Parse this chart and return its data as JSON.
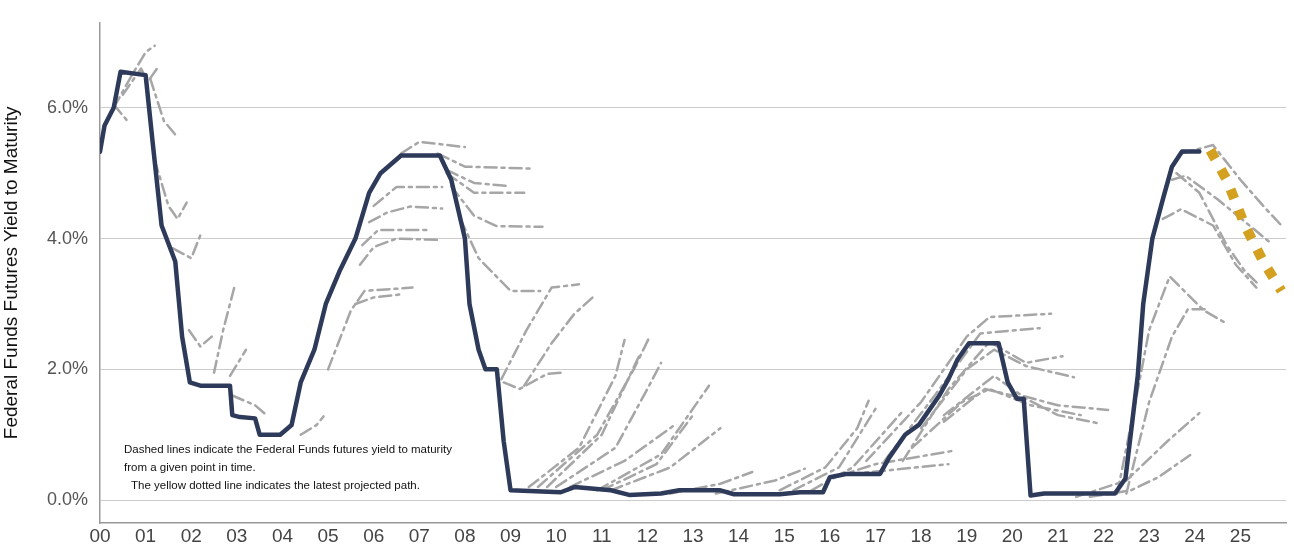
{
  "chart_data": {
    "type": "line",
    "ylabel": "Federal Funds Futures Yield to Maturity",
    "xlim": [
      2000,
      2026
    ],
    "ylim": [
      -0.35,
      7.3
    ],
    "xticks": [
      {
        "value": 2000,
        "label": "00"
      },
      {
        "value": 2001,
        "label": "01"
      },
      {
        "value": 2002,
        "label": "02"
      },
      {
        "value": 2003,
        "label": "03"
      },
      {
        "value": 2004,
        "label": "04"
      },
      {
        "value": 2005,
        "label": "05"
      },
      {
        "value": 2006,
        "label": "06"
      },
      {
        "value": 2007,
        "label": "07"
      },
      {
        "value": 2008,
        "label": "08"
      },
      {
        "value": 2009,
        "label": "09"
      },
      {
        "value": 2010,
        "label": "10"
      },
      {
        "value": 2011,
        "label": "11"
      },
      {
        "value": 2012,
        "label": "12"
      },
      {
        "value": 2013,
        "label": "13"
      },
      {
        "value": 2014,
        "label": "14"
      },
      {
        "value": 2015,
        "label": "15"
      },
      {
        "value": 2016,
        "label": "16"
      },
      {
        "value": 2017,
        "label": "17"
      },
      {
        "value": 2018,
        "label": "18"
      },
      {
        "value": 2019,
        "label": "19"
      },
      {
        "value": 2020,
        "label": "20"
      },
      {
        "value": 2021,
        "label": "21"
      },
      {
        "value": 2022,
        "label": "22"
      },
      {
        "value": 2023,
        "label": "23"
      },
      {
        "value": 2024,
        "label": "24"
      },
      {
        "value": 2025,
        "label": "25"
      }
    ],
    "yticks": [
      {
        "value": 0,
        "label": "0.0%"
      },
      {
        "value": 2,
        "label": "2.0%"
      },
      {
        "value": 4,
        "label": "4.0%"
      },
      {
        "value": 6,
        "label": "6.0%"
      }
    ],
    "grid": "y",
    "marker": "none",
    "annotations": [
      "Dashed lines indicate the Federal Funds futures yield to maturity from a given point in time.",
      "The yellow dotted line indicates the latest projected path."
    ],
    "series": [
      {
        "color": "#2e3a59",
        "line_style": "solid",
        "x": [
          2000.0,
          2000.1,
          2000.3,
          2000.45,
          2001.0,
          2001.15,
          2001.35,
          2001.65,
          2001.8,
          2001.97,
          2002.2,
          2002.85,
          2002.9,
          2003.07,
          2003.4,
          2003.5,
          2003.95,
          2004.2,
          2004.4,
          2004.7,
          2004.95,
          2005.25,
          2005.6,
          2005.9,
          2006.15,
          2006.6,
          2007.45,
          2007.7,
          2008.0,
          2008.1,
          2008.3,
          2008.45,
          2008.7,
          2008.85,
          2009.0,
          2010.1,
          2010.4,
          2011.2,
          2011.6,
          2012.3,
          2012.7,
          2013.6,
          2013.9,
          2014.9,
          2015.35,
          2015.85,
          2016.0,
          2016.35,
          2017.1,
          2017.3,
          2017.65,
          2017.95,
          2018.15,
          2018.4,
          2018.6,
          2018.8,
          2019.05,
          2019.7,
          2019.9,
          2020.1,
          2020.25,
          2020.4,
          2020.7,
          2022.25,
          2022.48,
          2022.75,
          2022.87,
          2023.07,
          2023.3,
          2023.5,
          2023.72,
          2024.1
        ],
        "values": [
          5.33,
          5.73,
          6.0,
          6.55,
          6.5,
          5.5,
          4.2,
          3.65,
          2.5,
          1.8,
          1.75,
          1.75,
          1.3,
          1.27,
          1.25,
          1.0,
          1.0,
          1.15,
          1.8,
          2.3,
          3.0,
          3.5,
          4.0,
          4.7,
          5.0,
          5.27,
          5.27,
          4.9,
          4.0,
          3.0,
          2.3,
          2.0,
          2.0,
          0.9,
          0.15,
          0.12,
          0.2,
          0.15,
          0.08,
          0.1,
          0.15,
          0.15,
          0.09,
          0.09,
          0.12,
          0.12,
          0.35,
          0.4,
          0.4,
          0.65,
          1.0,
          1.15,
          1.35,
          1.6,
          1.85,
          2.15,
          2.4,
          2.4,
          1.8,
          1.55,
          1.55,
          0.07,
          0.1,
          0.1,
          0.33,
          1.9,
          3.0,
          4.0,
          4.6,
          5.1,
          5.33,
          5.33
        ]
      },
      {
        "color": "#d4a020",
        "line_style": "dotted",
        "x": [
          2024.34,
          2024.7,
          2025.1,
          2025.5,
          2025.9
        ],
        "values": [
          5.35,
          4.9,
          4.2,
          3.65,
          3.2
        ]
      },
      {
        "color": "#a6a6a6",
        "line_style": "dashed",
        "x": [
          2000.3,
          2000.7,
          2001.0,
          2001.2
        ],
        "values": [
          6.0,
          6.5,
          6.85,
          6.95
        ]
      },
      {
        "color": "#a6a6a6",
        "line_style": "dashed",
        "x": [
          2000.5,
          2000.9,
          2001.05,
          2001.3
        ],
        "values": [
          6.2,
          6.6,
          6.4,
          6.65
        ]
      },
      {
        "color": "#a6a6a6",
        "line_style": "dashed",
        "x": [
          2000.3,
          2000.6
        ],
        "values": [
          6.05,
          5.8
        ]
      },
      {
        "color": "#a6a6a6",
        "line_style": "dashed",
        "x": [
          2001.1,
          2001.4,
          2001.7
        ],
        "values": [
          6.45,
          5.8,
          5.55
        ]
      },
      {
        "color": "#a6a6a6",
        "line_style": "dashed",
        "x": [
          2001.2,
          2001.5,
          2001.7,
          2001.9
        ],
        "values": [
          5.2,
          4.5,
          4.3,
          4.55
        ]
      },
      {
        "color": "#a6a6a6",
        "line_style": "dashed",
        "x": [
          2001.6,
          2002.0,
          2002.2
        ],
        "values": [
          3.85,
          3.7,
          4.05
        ]
      },
      {
        "color": "#a6a6a6",
        "line_style": "dashed",
        "x": [
          2001.95,
          2002.2,
          2002.45
        ],
        "values": [
          2.6,
          2.35,
          2.5
        ]
      },
      {
        "color": "#a6a6a6",
        "line_style": "dashed",
        "x": [
          2002.5,
          2002.7,
          2002.95
        ],
        "values": [
          1.95,
          2.6,
          3.27
        ]
      },
      {
        "color": "#a6a6a6",
        "line_style": "dashed",
        "x": [
          2002.85,
          2003.2
        ],
        "values": [
          1.9,
          2.3
        ]
      },
      {
        "color": "#a6a6a6",
        "line_style": "dashed",
        "x": [
          2002.9,
          2003.4,
          2003.65
        ],
        "values": [
          1.6,
          1.45,
          1.3
        ]
      },
      {
        "color": "#a6a6a6",
        "line_style": "dashed",
        "x": [
          2004.4,
          2004.75,
          2004.9
        ],
        "values": [
          1.0,
          1.15,
          1.28
        ]
      },
      {
        "color": "#a6a6a6",
        "line_style": "dashed",
        "x": [
          2005.0,
          2005.5,
          2005.8,
          2006.85
        ],
        "values": [
          2.0,
          2.9,
          3.2,
          3.25
        ]
      },
      {
        "color": "#a6a6a6",
        "line_style": "dashed",
        "x": [
          2005.6,
          2006.0,
          2006.65
        ],
        "values": [
          3.0,
          3.1,
          3.15
        ]
      },
      {
        "color": "#a6a6a6",
        "line_style": "dashed",
        "x": [
          2005.7,
          2006.0,
          2006.5,
          2007.4
        ],
        "values": [
          3.6,
          3.87,
          4.0,
          3.98
        ]
      },
      {
        "color": "#a6a6a6",
        "line_style": "dashed",
        "x": [
          2005.75,
          2006.1,
          2007.2
        ],
        "values": [
          3.9,
          4.13,
          4.13
        ]
      },
      {
        "color": "#a6a6a6",
        "line_style": "dashed",
        "x": [
          2005.9,
          2006.3,
          2006.8,
          2007.5
        ],
        "values": [
          4.25,
          4.4,
          4.49,
          4.46
        ]
      },
      {
        "color": "#a6a6a6",
        "line_style": "dashed",
        "x": [
          2006.0,
          2006.5,
          2007.5
        ],
        "values": [
          4.5,
          4.79,
          4.79
        ]
      },
      {
        "color": "#a6a6a6",
        "line_style": "dashed",
        "x": [
          2006.6,
          2007.0,
          2008.0
        ],
        "values": [
          5.3,
          5.48,
          5.4
        ]
      },
      {
        "color": "#a6a6a6",
        "line_style": "dashed",
        "x": [
          2007.4,
          2008.0,
          2009.5
        ],
        "values": [
          5.3,
          5.1,
          5.07
        ]
      },
      {
        "color": "#a6a6a6",
        "line_style": "dashed",
        "x": [
          2007.6,
          2008.2,
          2009.0
        ],
        "values": [
          5.05,
          4.85,
          4.8
        ]
      },
      {
        "color": "#a6a6a6",
        "line_style": "dashed",
        "x": [
          2007.6,
          2008.2,
          2009.3
        ],
        "values": [
          5.0,
          4.7,
          4.7
        ]
      },
      {
        "color": "#a6a6a6",
        "line_style": "dashed",
        "x": [
          2007.7,
          2008.2,
          2008.7,
          2009.7
        ],
        "values": [
          4.8,
          4.35,
          4.19,
          4.18
        ]
      },
      {
        "color": "#a6a6a6",
        "line_style": "dashed",
        "x": [
          2007.9,
          2008.3,
          2009.0,
          2009.65
        ],
        "values": [
          4.3,
          3.7,
          3.2,
          3.2
        ]
      },
      {
        "color": "#a6a6a6",
        "line_style": "dashed",
        "x": [
          2008.8,
          2009.35,
          2009.9,
          2010.5
        ],
        "values": [
          1.85,
          2.6,
          3.25,
          3.3
        ]
      },
      {
        "color": "#a6a6a6",
        "line_style": "dashed",
        "x": [
          2008.85,
          2009.2,
          2009.8,
          2010.15
        ],
        "values": [
          1.8,
          1.7,
          1.93,
          1.95
        ]
      },
      {
        "color": "#a6a6a6",
        "line_style": "dashed",
        "x": [
          2009.3,
          2009.9,
          2010.4,
          2010.8
        ],
        "values": [
          1.75,
          2.4,
          2.85,
          3.1
        ]
      },
      {
        "color": "#a6a6a6",
        "line_style": "dashed",
        "x": [
          2009.4,
          2010.5,
          2011.3,
          2011.5
        ],
        "values": [
          0.2,
          0.8,
          1.9,
          2.45
        ]
      },
      {
        "color": "#a6a6a6",
        "line_style": "dashed",
        "x": [
          2009.6,
          2010.9,
          2011.7,
          2012.05
        ],
        "values": [
          0.2,
          1.0,
          2.0,
          2.5
        ]
      },
      {
        "color": "#a6a6a6",
        "line_style": "dashed",
        "x": [
          2010.0,
          2011.3,
          2012.0,
          2012.3
        ],
        "values": [
          0.2,
          0.8,
          1.7,
          2.1
        ]
      },
      {
        "color": "#a6a6a6",
        "line_style": "dashed",
        "x": [
          2009.8,
          2011.0,
          2011.85
        ],
        "values": [
          0.2,
          1.0,
          2.25
        ]
      },
      {
        "color": "#a6a6a6",
        "line_style": "dashed",
        "x": [
          2010.3,
          2011.5,
          2012.6
        ],
        "values": [
          0.2,
          0.6,
          1.15
        ]
      },
      {
        "color": "#a6a6a6",
        "line_style": "dashed",
        "x": [
          2010.9,
          2012.3,
          2013.35
        ],
        "values": [
          0.15,
          0.7,
          1.75
        ]
      },
      {
        "color": "#a6a6a6",
        "line_style": "dashed",
        "x": [
          2011.2,
          2012.5,
          2013.6
        ],
        "values": [
          0.15,
          0.5,
          1.1
        ]
      },
      {
        "color": "#a6a6a6",
        "line_style": "dashed",
        "x": [
          2011.0,
          2012.2,
          2013.0
        ],
        "values": [
          0.15,
          0.55,
          1.3
        ]
      },
      {
        "color": "#a6a6a6",
        "line_style": "dashed",
        "x": [
          2012.5,
          2013.6,
          2014.3
        ],
        "values": [
          0.1,
          0.25,
          0.43
        ]
      },
      {
        "color": "#a6a6a6",
        "line_style": "dashed",
        "x": [
          2013.5,
          2014.8,
          2015.45
        ],
        "values": [
          0.1,
          0.3,
          0.48
        ]
      },
      {
        "color": "#a6a6a6",
        "line_style": "dashed",
        "x": [
          2014.9,
          2015.9,
          2016.6,
          2016.85
        ],
        "values": [
          0.15,
          0.5,
          1.1,
          1.52
        ]
      },
      {
        "color": "#a6a6a6",
        "line_style": "dashed",
        "x": [
          2015.2,
          2016.2,
          2017.05
        ],
        "values": [
          0.15,
          0.5,
          1.45
        ]
      },
      {
        "color": "#a6a6a6",
        "line_style": "dashed",
        "x": [
          2015.6,
          2016.5,
          2017.6
        ],
        "values": [
          0.15,
          0.5,
          1.36
        ]
      },
      {
        "color": "#a6a6a6",
        "line_style": "dashed",
        "x": [
          2016.1,
          2017.0,
          2018.75
        ],
        "values": [
          0.35,
          0.55,
          0.76
        ]
      },
      {
        "color": "#a6a6a6",
        "line_style": "dashed",
        "x": [
          2016.4,
          2017.2,
          2018.6
        ],
        "values": [
          0.4,
          0.45,
          0.55
        ]
      },
      {
        "color": "#a6a6a6",
        "line_style": "dashed",
        "x": [
          2016.8,
          2018.0,
          2019.0,
          2019.5,
          2020.85
        ],
        "values": [
          0.6,
          1.5,
          2.5,
          2.8,
          2.85
        ]
      },
      {
        "color": "#a6a6a6",
        "line_style": "dashed",
        "x": [
          2017.2,
          2018.3,
          2019.3,
          2020.6
        ],
        "values": [
          0.6,
          1.6,
          2.55,
          2.63
        ]
      },
      {
        "color": "#a6a6a6",
        "line_style": "dashed",
        "x": [
          2017.6,
          2018.6,
          2019.5,
          2020.3,
          2021.1
        ],
        "values": [
          0.6,
          1.7,
          2.42,
          2.1,
          2.2
        ]
      },
      {
        "color": "#a6a6a6",
        "line_style": "dashed",
        "x": [
          2018.0,
          2019.0,
          2019.6,
          2020.3,
          2021.35
        ],
        "values": [
          1.1,
          2.0,
          2.3,
          2.05,
          1.88
        ]
      },
      {
        "color": "#a6a6a6",
        "line_style": "dashed",
        "x": [
          2018.5,
          2019.6,
          2020.2,
          2021.0,
          2022.1
        ],
        "values": [
          1.3,
          1.9,
          1.6,
          1.45,
          1.38
        ]
      },
      {
        "color": "#a6a6a6",
        "line_style": "dashed",
        "x": [
          2018.5,
          2019.4,
          2020.3,
          2021.0,
          2021.85
        ],
        "values": [
          1.2,
          1.7,
          1.55,
          1.3,
          1.18
        ]
      },
      {
        "color": "#a6a6a6",
        "line_style": "dashed",
        "x": [
          2017.8,
          2018.9,
          2019.5,
          2020.4,
          2021.5
        ],
        "values": [
          0.8,
          1.5,
          1.7,
          1.45,
          1.3
        ]
      },
      {
        "color": "#a6a6a6",
        "line_style": "dashed",
        "x": [
          2021.4,
          2022.5,
          2023.4,
          2024.1
        ],
        "values": [
          0.05,
          0.3,
          0.9,
          1.33
        ]
      },
      {
        "color": "#a6a6a6",
        "line_style": "dashed",
        "x": [
          2021.7,
          2022.6,
          2023.2,
          2023.9
        ],
        "values": [
          0.05,
          0.15,
          0.35,
          0.69
        ]
      },
      {
        "color": "#a6a6a6",
        "line_style": "dashed",
        "x": [
          2022.5,
          2023.0,
          2023.5,
          2023.85,
          2024.25
        ],
        "values": [
          0.1,
          1.5,
          2.5,
          2.92,
          2.92
        ]
      },
      {
        "color": "#a6a6a6",
        "line_style": "dashed",
        "x": [
          2022.3,
          2022.7,
          2023.0,
          2023.45,
          2024.2,
          2024.65
        ],
        "values": [
          0.1,
          1.5,
          2.6,
          3.42,
          2.9,
          2.72
        ]
      },
      {
        "color": "#a6a6a6",
        "line_style": "dashed",
        "x": [
          2023.7,
          2024.4,
          2025.0,
          2025.5,
          2025.9
        ],
        "values": [
          5.3,
          5.43,
          4.9,
          4.5,
          4.2
        ]
      },
      {
        "color": "#a6a6a6",
        "line_style": "dashed",
        "x": [
          2023.5,
          2023.8,
          2024.5,
          2025.2,
          2025.65
        ],
        "values": [
          4.9,
          4.96,
          4.6,
          4.2,
          3.94
        ]
      },
      {
        "color": "#a6a6a6",
        "line_style": "dashed",
        "x": [
          2023.3,
          2023.7,
          2024.4,
          2024.9,
          2025.35
        ],
        "values": [
          4.3,
          4.45,
          4.2,
          3.6,
          3.25
        ]
      },
      {
        "color": "#a6a6a6",
        "line_style": "dashed",
        "x": [
          2023.6,
          2024.1,
          2024.7,
          2025.1,
          2025.4
        ],
        "values": [
          5.0,
          4.7,
          3.9,
          3.5,
          3.3
        ]
      }
    ]
  }
}
